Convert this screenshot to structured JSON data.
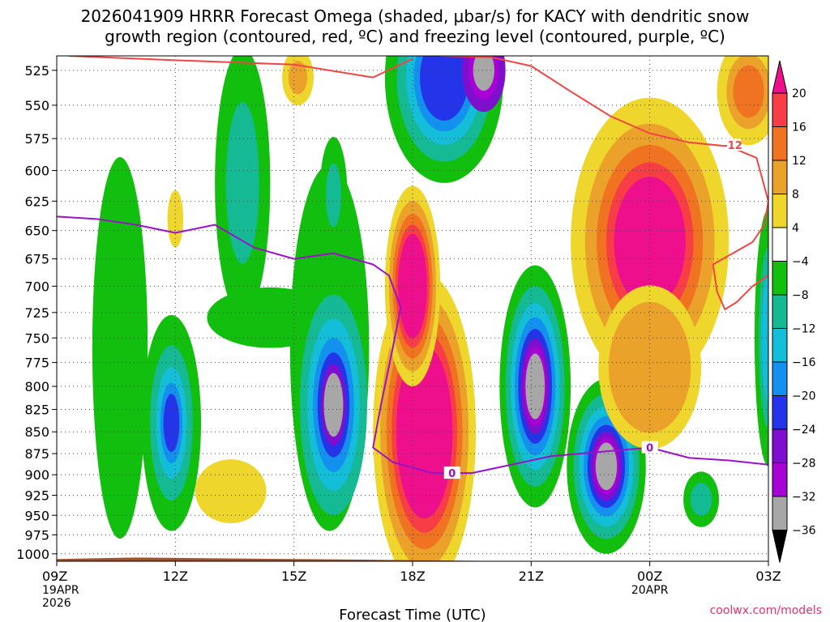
{
  "title": {
    "line1": "2026041909 HRRR Forecast Omega (shaded, μbar/s) for KACY with dendritic snow",
    "line2": "growth region (contoured, red, ºC) and freezing level (contoured, purple, ºC)"
  },
  "credit": "coolwx.com/models",
  "chart_data": {
    "type": "time-height",
    "xlabel": "Forecast Time (UTC)",
    "ylabel": "",
    "x_ticks": [
      {
        "hour": 0,
        "label": "09Z",
        "date": "19APR",
        "year": "2026"
      },
      {
        "hour": 3,
        "label": "12Z",
        "date": "",
        "year": ""
      },
      {
        "hour": 6,
        "label": "15Z",
        "date": "",
        "year": ""
      },
      {
        "hour": 9,
        "label": "18Z",
        "date": "",
        "year": ""
      },
      {
        "hour": 12,
        "label": "21Z",
        "date": "",
        "year": ""
      },
      {
        "hour": 15,
        "label": "00Z",
        "date": "20APR",
        "year": ""
      },
      {
        "hour": 18,
        "label": "03Z",
        "date": "",
        "year": ""
      }
    ],
    "xlim_hours": [
      0,
      18
    ],
    "ylim_hpa": [
      515,
      1010
    ],
    "y_scale": "log",
    "y_ticks": [
      525,
      550,
      575,
      600,
      625,
      650,
      675,
      700,
      725,
      750,
      775,
      800,
      825,
      850,
      875,
      900,
      925,
      950,
      975,
      1000
    ],
    "grid": "dotted",
    "colorbar": {
      "labels": [
        "20",
        "16",
        "12",
        "8",
        "4",
        "−4",
        "−8",
        "−12",
        "−16",
        "−20",
        "−24",
        "−28",
        "−32",
        "−36"
      ],
      "colors": [
        "#ee0f8c",
        "#f73d46",
        "#f07322",
        "#eba22a",
        "#eed62c",
        "#ffffff",
        "#12bf0f",
        "#15b994",
        "#14bdd8",
        "#1490ee",
        "#2434e8",
        "#7e0fcf",
        "#a603d4",
        "#a7a7a7",
        "#000000"
      ]
    },
    "fill_colors": {
      "green": "#12bf0f",
      "teal": "#15b994",
      "cyan": "#14bdd8",
      "lightblue": "#1490ee",
      "blue": "#2434e8",
      "purple": "#7e0fcf",
      "violet": "#a603d4",
      "gray": "#a7a7a7",
      "black": "#000000",
      "yellow": "#eed62c",
      "gold": "#eba22a",
      "orange": "#f07322",
      "red": "#f73d46",
      "magenta": "#ee0f8c",
      "ground": "#a1522c"
    },
    "freezing_level": {
      "label": "0",
      "color": "#9a12c8",
      "points": [
        [
          0,
          638
        ],
        [
          1,
          640
        ],
        [
          2,
          645
        ],
        [
          3,
          652
        ],
        [
          4,
          645
        ],
        [
          5,
          665
        ],
        [
          6,
          675
        ],
        [
          7,
          670
        ],
        [
          8,
          680
        ],
        [
          8.4,
          690
        ],
        [
          8.7,
          720
        ],
        [
          8.5,
          760
        ],
        [
          8.2,
          820
        ],
        [
          8.0,
          868
        ],
        [
          8.5,
          885
        ],
        [
          9.5,
          898
        ],
        [
          10.5,
          898
        ],
        [
          11.5,
          888
        ],
        [
          12.5,
          878
        ],
        [
          13.5,
          874
        ],
        [
          14.5,
          870
        ],
        [
          15,
          868
        ],
        [
          16,
          880
        ],
        [
          17,
          883
        ],
        [
          18,
          888
        ]
      ]
    },
    "dgz_minus12": {
      "label": "-12",
      "color": "#f24444",
      "segments": [
        [
          [
            0.3,
            515
          ],
          [
            3,
            518
          ],
          [
            6,
            521
          ],
          [
            8,
            530
          ],
          [
            9,
            517
          ]
        ],
        [
          [
            9.7,
            515
          ],
          [
            11,
            516
          ],
          [
            12,
            522
          ],
          [
            13,
            540
          ],
          [
            14,
            558
          ],
          [
            15,
            571
          ],
          [
            16,
            578
          ],
          [
            17,
            581
          ],
          [
            17.7,
            590
          ],
          [
            18,
            625
          ],
          [
            17.9,
            645
          ],
          [
            17.6,
            660
          ],
          [
            17.2,
            668
          ],
          [
            16.6,
            680
          ],
          [
            16.7,
            705
          ],
          [
            16.9,
            722
          ],
          [
            17.2,
            715
          ],
          [
            17.6,
            700
          ],
          [
            18,
            690
          ]
        ]
      ]
    },
    "ground": {
      "points": [
        [
          0,
          1007
        ],
        [
          2,
          1005
        ],
        [
          4,
          1006
        ],
        [
          6,
          1007
        ],
        [
          8,
          1008
        ],
        [
          10,
          1009
        ],
        [
          12,
          1010
        ],
        [
          14,
          1012
        ],
        [
          16,
          1013
        ],
        [
          18,
          1014
        ]
      ]
    }
  }
}
